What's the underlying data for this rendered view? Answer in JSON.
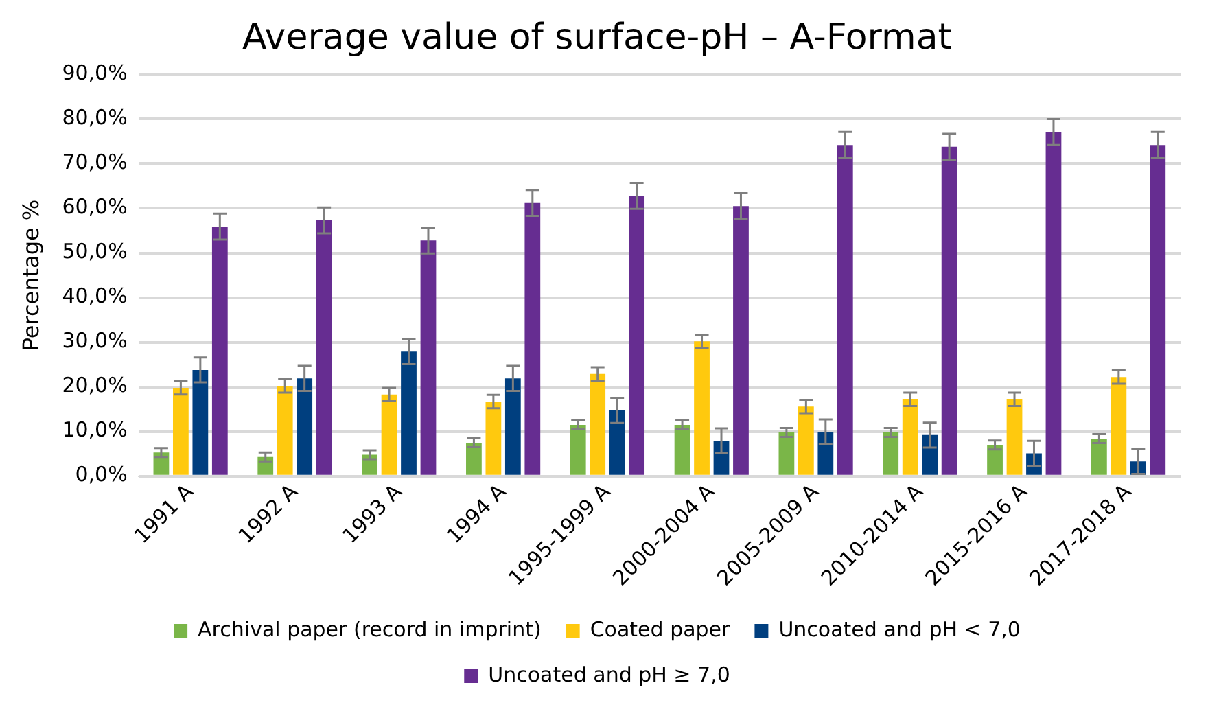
{
  "chart_data": {
    "type": "bar",
    "title": "Average value of surface-pH – A-Format",
    "ylabel": "Percentage %",
    "categories": [
      "1991 A",
      "1992 A",
      "1993 A",
      "1994 A",
      "1995-1999 A",
      "2000-2004 A",
      "2005-2009 A",
      "2010-2014 A",
      "2015-2016 A",
      "2017-2018 A"
    ],
    "series": [
      {
        "name": "Archival paper (record in imprint)",
        "color": "#7ab648",
        "values": [
          5.3,
          4.3,
          4.8,
          7.5,
          11.5,
          11.5,
          9.8,
          9.8,
          7.0,
          8.4
        ],
        "errors": [
          1,
          1,
          1,
          1,
          1,
          1,
          1,
          1,
          1,
          1
        ]
      },
      {
        "name": "Coated paper",
        "color": "#ffc90e",
        "values": [
          19.8,
          20.2,
          18.3,
          16.7,
          22.9,
          30.2,
          15.6,
          17.2,
          17.2,
          22.2
        ],
        "errors": [
          1.5,
          1.5,
          1.5,
          1.5,
          1.5,
          1.5,
          1.5,
          1.5,
          1.5,
          1.5
        ]
      },
      {
        "name": "Uncoated and pH < 7,0",
        "color": "#003f7f",
        "values": [
          23.8,
          21.9,
          27.9,
          21.9,
          14.7,
          7.9,
          9.9,
          9.2,
          5.1,
          3.3
        ],
        "errors": [
          2.8,
          2.8,
          2.8,
          2.8,
          2.8,
          2.8,
          2.8,
          2.8,
          2.8,
          2.8
        ]
      },
      {
        "name": "Uncoated and pH ≥ 7,0",
        "color": "#662d91",
        "values": [
          55.9,
          57.3,
          52.8,
          61.2,
          62.8,
          60.5,
          74.2,
          73.8,
          77.1,
          74.2
        ],
        "errors": [
          2.9,
          2.9,
          2.9,
          2.9,
          2.9,
          2.9,
          2.9,
          2.9,
          2.9,
          2.9
        ]
      }
    ],
    "ylim": [
      0,
      90
    ],
    "yticks": [
      {
        "value": 0,
        "label": "0,0%"
      },
      {
        "value": 10,
        "label": "10,0%"
      },
      {
        "value": 20,
        "label": "20,0%"
      },
      {
        "value": 30,
        "label": "30,0%"
      },
      {
        "value": 40,
        "label": "40,0%"
      },
      {
        "value": 50,
        "label": "50,0%"
      },
      {
        "value": 60,
        "label": "60,0%"
      },
      {
        "value": 70,
        "label": "70,0%"
      },
      {
        "value": 80,
        "label": "80,0%"
      },
      {
        "value": 90,
        "label": "90,0%"
      }
    ],
    "grid": "y",
    "legend": "bottom"
  }
}
